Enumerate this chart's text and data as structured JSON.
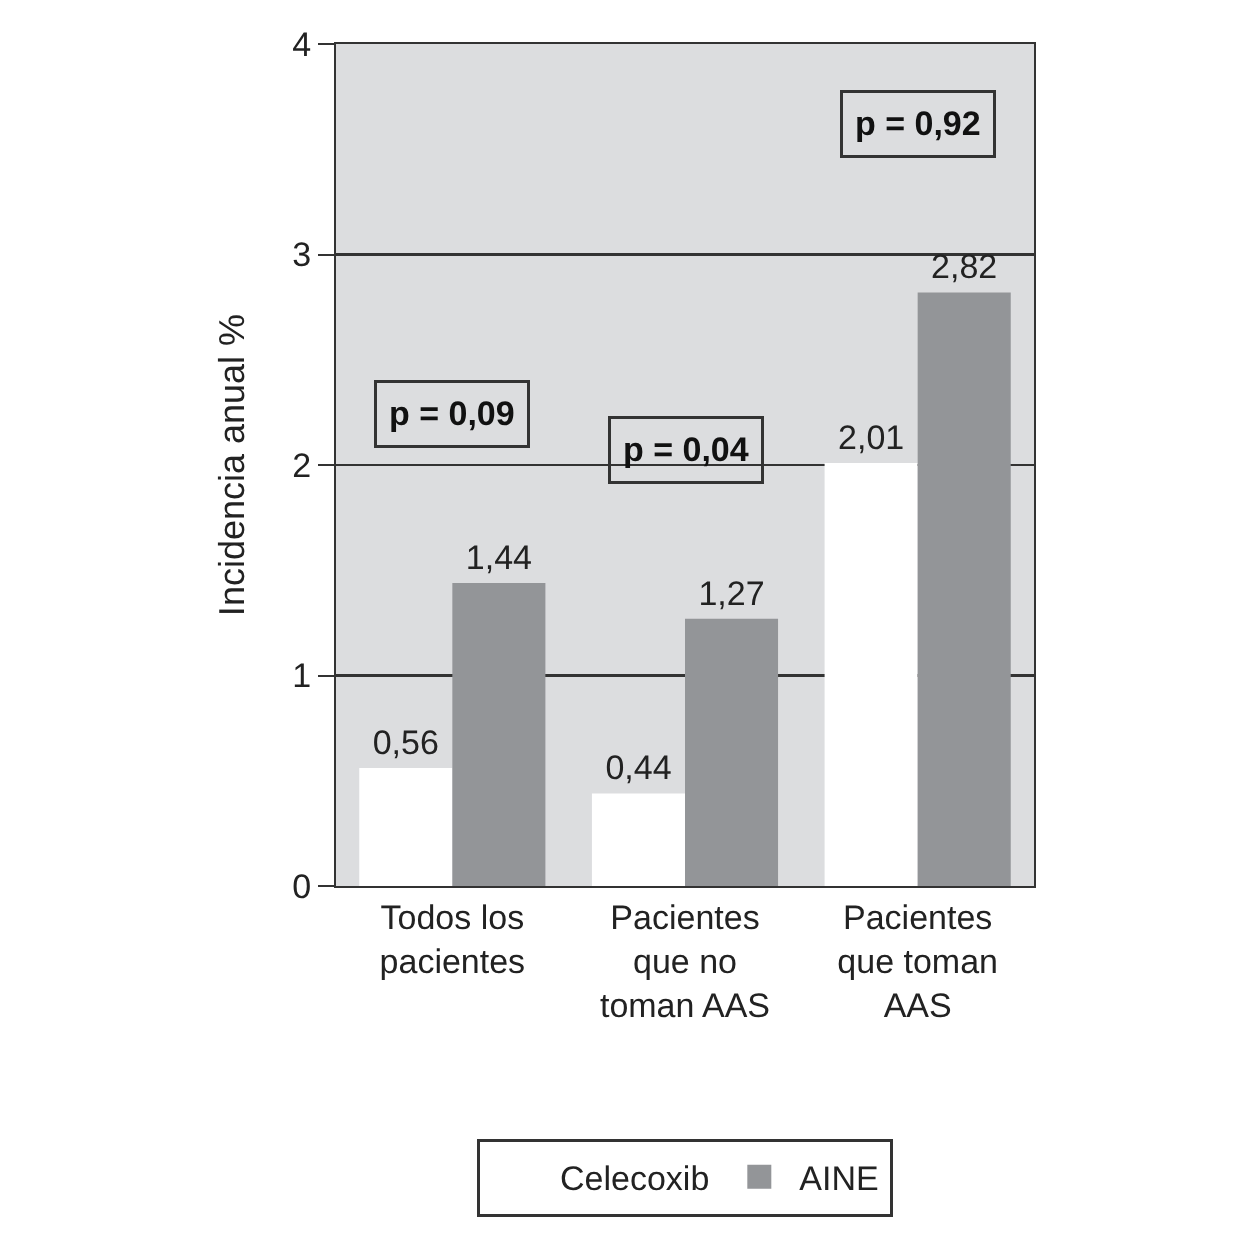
{
  "chart_data": {
    "type": "bar",
    "ylabel": "Incidencia anual %",
    "categories": [
      "Todos los pacientes",
      "Pacientes que no toman AAS",
      "Pacientes que toman AAS"
    ],
    "series": [
      {
        "name": "Celecoxib",
        "color": "#ffffff",
        "values": [
          0.56,
          0.44,
          2.01
        ],
        "value_labels": [
          "0,56",
          "0,44",
          "2,01"
        ]
      },
      {
        "name": "AINE",
        "color": "#939598",
        "values": [
          1.44,
          1.27,
          2.82
        ],
        "value_labels": [
          "1,44",
          "1,27",
          "2,82"
        ]
      }
    ],
    "ylim": [
      0,
      4
    ],
    "yticks": [
      0,
      1,
      2,
      3,
      4
    ],
    "grid": "y",
    "legend": "bottom",
    "annotations": [
      "p = 0,09",
      "p = 0,04",
      "p = 0,92"
    ]
  }
}
